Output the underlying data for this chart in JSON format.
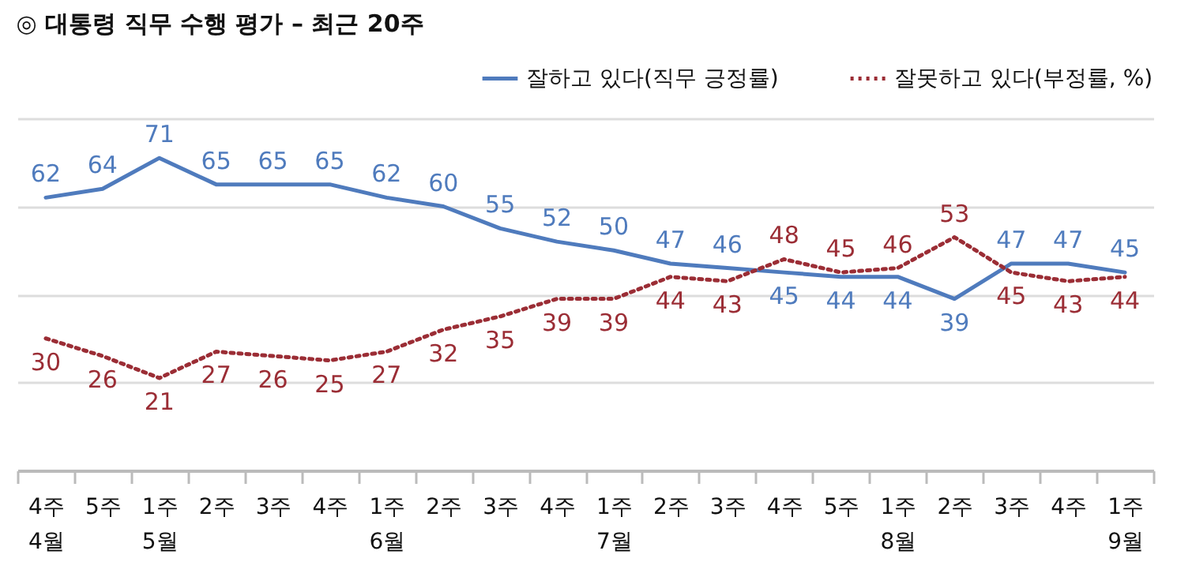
{
  "chart_data": {
    "type": "line",
    "title": "◎  대통령 직무 수행 평가 – 최근 20주",
    "categories": [
      "4주\n4월",
      "5주",
      "1주\n5월",
      "2주",
      "3주",
      "4주",
      "1주\n6월",
      "2주",
      "3주",
      "4주",
      "1주\n7월",
      "2주",
      "3주",
      "4주",
      "5주",
      "1주\n8월",
      "2주",
      "3주",
      "4주",
      "1주\n9월"
    ],
    "series": [
      {
        "name": "잘하고 있다(직무 긍정률)",
        "color": "#4f7bbd",
        "line_style": "solid",
        "values": [
          62,
          64,
          71,
          65,
          65,
          65,
          62,
          60,
          55,
          52,
          50,
          47,
          46,
          45,
          44,
          44,
          39,
          47,
          47,
          45
        ]
      },
      {
        "name": "잘못하고 있다(부정률, %)",
        "color": "#9b2d35",
        "line_style": "dotted",
        "values": [
          30,
          26,
          21,
          27,
          26,
          25,
          27,
          32,
          35,
          39,
          39,
          44,
          43,
          48,
          45,
          46,
          53,
          45,
          43,
          44
        ]
      }
    ],
    "ylim": [
      0,
      80
    ],
    "yticks": [
      {
        "value": 0,
        "label": null
      },
      {
        "value": 20,
        "label": null
      },
      {
        "value": 40,
        "label": null
      },
      {
        "value": 60,
        "label": null
      },
      {
        "value": 80,
        "label": null
      }
    ],
    "grid": "y",
    "tick_labels": "x",
    "legend": "top right",
    "data_labels": true,
    "marker": "none"
  }
}
